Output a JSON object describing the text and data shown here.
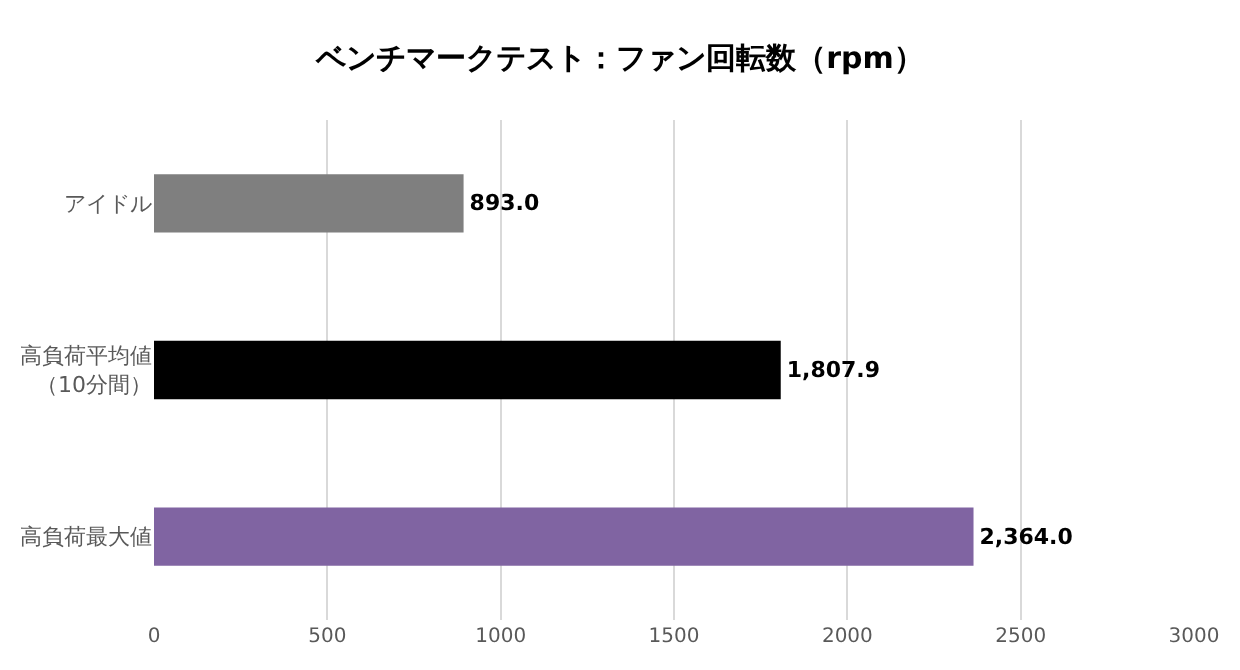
{
  "chart_data": {
    "type": "bar",
    "orientation": "horizontal",
    "title": "ベンチマークテスト：ファン回転数（rpm）",
    "categories": [
      "アイドル",
      "高負荷平均値（10分間）",
      "高負荷最大値"
    ],
    "values": [
      893.0,
      1807.9,
      2364.0
    ],
    "colors": [
      "#7f7f7f",
      "#000000",
      "#8064a2"
    ],
    "value_labels": [
      "893.0",
      "1,807.9",
      "2,364.0"
    ],
    "xlim": [
      0,
      3000
    ],
    "xticks": [
      0,
      500,
      1000,
      1500,
      2000,
      2500,
      3000
    ],
    "grid": "x",
    "legend": false
  }
}
